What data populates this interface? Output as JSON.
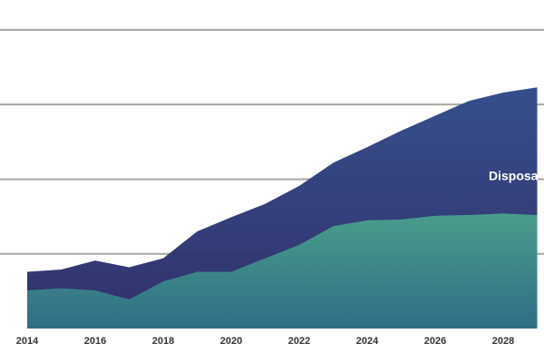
{
  "chart_data": {
    "type": "area",
    "x": [
      2014,
      2015,
      2016,
      2017,
      2018,
      2019,
      2020,
      2021,
      2022,
      2023,
      2024,
      2025,
      2026,
      2027,
      2028,
      2029
    ],
    "series": [
      {
        "color": "#2f3877",
        "values": [
          0.76,
          0.79,
          0.91,
          0.82,
          0.94,
          1.3,
          1.49,
          1.67,
          1.91,
          2.22,
          2.43,
          2.65,
          2.85,
          3.05,
          3.16,
          3.23
        ]
      },
      {
        "color": "#3a8a7c",
        "values": [
          0.51,
          0.54,
          0.51,
          0.39,
          0.63,
          0.76,
          0.76,
          0.94,
          1.12,
          1.37,
          1.45,
          1.46,
          1.51,
          1.52,
          1.54,
          1.52
        ]
      }
    ],
    "annotation": "Disposa",
    "xlim": [
      2013.2,
      2029.2
    ],
    "xticks": [
      2014,
      2016,
      2018,
      2020,
      2022,
      2024,
      2026,
      2028
    ],
    "ylim": [
      0,
      4.4
    ],
    "yticks": [
      1,
      2,
      3,
      4
    ],
    "grid": true
  }
}
